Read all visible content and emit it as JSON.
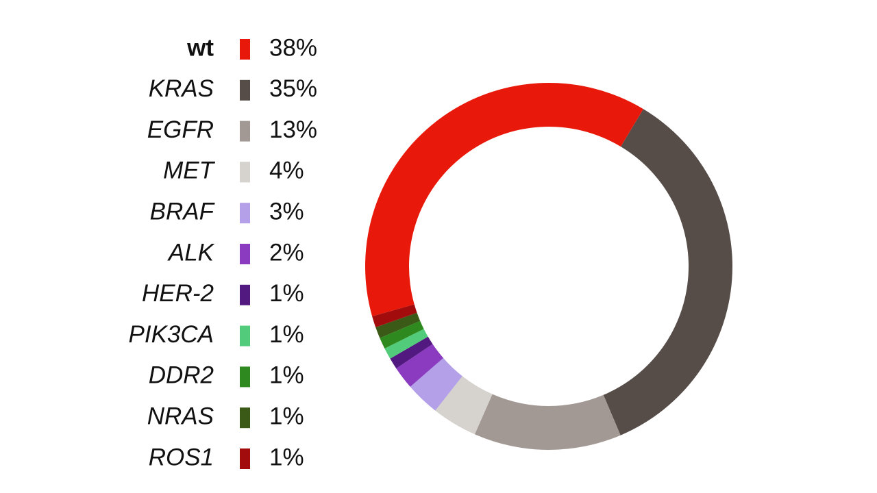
{
  "chart_data": {
    "type": "donut",
    "categories": [
      "wt",
      "KRAS",
      "EGFR",
      "MET",
      "BRAF",
      "ALK",
      "HER-2",
      "PIK3CA",
      "DDR2",
      "NRAS",
      "ROS1"
    ],
    "values": [
      38,
      35,
      13,
      4,
      3,
      2,
      1,
      1,
      1,
      1,
      1
    ],
    "value_labels": [
      "38%",
      "35%",
      "13%",
      "4%",
      "3%",
      "2%",
      "1%",
      "1%",
      "1%",
      "1%",
      "1%"
    ],
    "colors": [
      "#e8190a",
      "#564d49",
      "#a39994",
      "#d6d2cd",
      "#b3a0e8",
      "#8b3bbf",
      "#521a80",
      "#52cc7a",
      "#2e8a1e",
      "#3b5a17",
      "#a30c0c"
    ]
  }
}
